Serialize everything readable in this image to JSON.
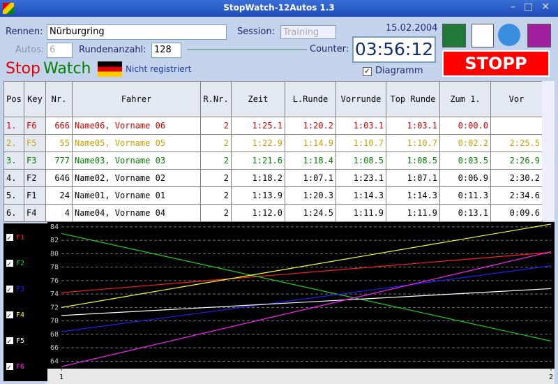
{
  "window": {
    "title": "StopWatch-12Autos 1.3"
  },
  "form": {
    "rennen_label": "Rennen:",
    "rennen_value": "Nürburgring",
    "session_label": "Session:",
    "session_value": "Training",
    "autos_label": "Autos:",
    "autos_value": "6",
    "runden_label": "Rundenanzahl:",
    "runden_value": "128",
    "counter_label": "Counter:",
    "date": "15.02.2004",
    "counter": "03:56:12",
    "logo_stop": "Stop",
    "logo_watch": "Watch",
    "registration": "Nicht registriert",
    "diagram_label": "Diagramm",
    "stop_button": "STOPP"
  },
  "table": {
    "headers": [
      "Pos",
      "Key",
      "Nr.",
      "Fahrer",
      "R.Nr.",
      "Zeit",
      "L.Runde",
      "Vorrunde",
      "Top Runde",
      "Zum 1.",
      "Vor"
    ],
    "rows": [
      {
        "color": "#d00000",
        "cells": [
          "1.",
          "F6",
          "666",
          "Name06, Vorname 06",
          "2",
          "1:25.1",
          "1:20.2",
          "1:03.1",
          "1:03.1",
          "0:00.0",
          null
        ]
      },
      {
        "color": "#c8a000",
        "cells": [
          "2.",
          "F5",
          "55",
          "Name05, Vorname 05",
          "2",
          "1:22.9",
          "1:14.9",
          "1:10.7",
          "1:10.7",
          "0:02.2",
          "2:25.5"
        ]
      },
      {
        "color": "#008000",
        "cells": [
          "3.",
          "F3",
          "777",
          "Name03, Vorname 03",
          "2",
          "1:21.6",
          "1:18.4",
          "1:08.5",
          "1:08.5",
          "0:03.5",
          "2:26.9"
        ]
      },
      {
        "color": "#000000",
        "cells": [
          "4.",
          "F2",
          "646",
          "Name02, Vorname 02",
          "2",
          "1:18.2",
          "1:07.1",
          "1:23.1",
          "1:07.1",
          "0:06.9",
          "2:30.2"
        ]
      },
      {
        "color": "#000000",
        "cells": [
          "5.",
          "F1",
          "24",
          "Name01, Vorname 01",
          "2",
          "1:13.9",
          "1:20.3",
          "1:14.3",
          "1:14.3",
          "0:11.3",
          "2:34.6"
        ]
      },
      {
        "color": "#000000",
        "cells": [
          "6.",
          "F4",
          "4",
          "Name04, Vorname 04",
          "2",
          "1:12.0",
          "1:24.5",
          "1:11.9",
          "1:11.9",
          "0:13.1",
          "0:09.6"
        ]
      }
    ]
  },
  "chart_data": {
    "type": "line",
    "x": [
      1,
      2
    ],
    "xlim": [
      1,
      2
    ],
    "xticks": [
      1,
      2
    ],
    "ylim": [
      63,
      84.5
    ],
    "yticks": [
      64,
      66,
      68,
      70,
      72,
      74,
      76,
      78,
      80,
      82,
      84
    ],
    "grid": true,
    "series": [
      {
        "name": "F1",
        "color": "#ff2020",
        "values": [
          74.2,
          80.2
        ]
      },
      {
        "name": "F2",
        "color": "#20d020",
        "values": [
          83.0,
          67.0
        ]
      },
      {
        "name": "F3",
        "color": "#2020ff",
        "values": [
          68.4,
          78.2
        ]
      },
      {
        "name": "F4",
        "color": "#ffff30",
        "values": [
          72.0,
          84.4
        ]
      },
      {
        "name": "F5",
        "color": "#ffffff",
        "values": [
          70.8,
          74.8
        ]
      },
      {
        "name": "F6",
        "color": "#ff20ff",
        "values": [
          63.2,
          80.3
        ]
      }
    ]
  }
}
